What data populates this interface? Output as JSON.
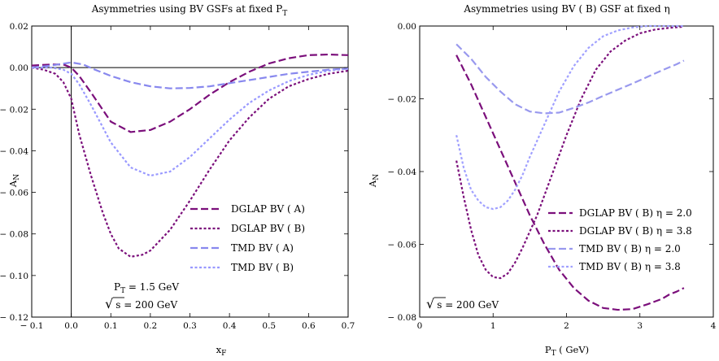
{
  "chart_data": [
    {
      "type": "line",
      "title": "Asymmetries using BV GSFs at fixed P",
      "title_subscript": "T",
      "xlabel": "x",
      "xlabel_subscript": "F",
      "ylabel": "A",
      "ylabel_subscript": "N",
      "xlim": [
        -0.1,
        0.7
      ],
      "ylim": [
        -0.12,
        0.02
      ],
      "xticks": [
        -0.1,
        0.0,
        0.1,
        0.2,
        0.3,
        0.4,
        0.5,
        0.6,
        0.7
      ],
      "xtick_labels": [
        "− 0.1",
        "0.0",
        "0.1",
        "0.2",
        "0.3",
        "0.4",
        "0.5",
        "0.6",
        "0.7"
      ],
      "yticks": [
        0.02,
        0.0,
        -0.02,
        -0.04,
        -0.06,
        -0.08,
        -0.1,
        -0.12
      ],
      "ytick_labels": [
        "0.02",
        "0.00",
        "− 0.02",
        "− 0.04",
        "− 0.06",
        "− 0.08",
        "− 0.10",
        "− 0.12"
      ],
      "grid": false,
      "axes_crossing_lines": true,
      "legend_position": "bottom-right",
      "annotations": {
        "pt_label": "P",
        "pt_sub": "T",
        "pt_value": " = 1.5 GeV",
        "sqrt_symbol": "√",
        "s_label": "s",
        "s_value": " = 200 GeV"
      },
      "series": [
        {
          "name": "DGLAP BV ( A)",
          "color": "#7b0f7b",
          "dash": "long",
          "x": [
            -0.1,
            -0.05,
            -0.02,
            0.0,
            0.02,
            0.05,
            0.1,
            0.15,
            0.2,
            0.25,
            0.3,
            0.35,
            0.4,
            0.45,
            0.5,
            0.55,
            0.6,
            0.65,
            0.7
          ],
          "y": [
            0.001,
            0.0015,
            0.0015,
            0.0,
            -0.004,
            -0.012,
            -0.026,
            -0.031,
            -0.03,
            -0.026,
            -0.02,
            -0.013,
            -0.007,
            -0.002,
            0.002,
            0.0045,
            0.006,
            0.0063,
            0.006
          ]
        },
        {
          "name": "DGLAP BV ( B)",
          "color": "#7b0f7b",
          "dash": "short",
          "x": [
            -0.1,
            -0.07,
            -0.04,
            -0.02,
            0.0,
            0.02,
            0.05,
            0.08,
            0.1,
            0.12,
            0.15,
            0.18,
            0.2,
            0.25,
            0.3,
            0.35,
            0.4,
            0.45,
            0.5,
            0.55,
            0.6,
            0.65,
            0.7
          ],
          "y": [
            0.0,
            -0.001,
            -0.003,
            -0.007,
            -0.015,
            -0.032,
            -0.052,
            -0.07,
            -0.08,
            -0.087,
            -0.091,
            -0.09,
            -0.088,
            -0.078,
            -0.064,
            -0.049,
            -0.035,
            -0.024,
            -0.015,
            -0.009,
            -0.0055,
            -0.003,
            -0.0015
          ]
        },
        {
          "name": "TMD BV ( A)",
          "color": "#8888ee",
          "dash": "long",
          "x": [
            -0.1,
            -0.05,
            0.0,
            0.03,
            0.06,
            0.1,
            0.15,
            0.2,
            0.25,
            0.3,
            0.35,
            0.4,
            0.45,
            0.5,
            0.55,
            0.6,
            0.65,
            0.7
          ],
          "y": [
            0.0,
            0.001,
            0.0025,
            0.0015,
            -0.001,
            -0.004,
            -0.007,
            -0.009,
            -0.01,
            -0.0098,
            -0.009,
            -0.0075,
            -0.006,
            -0.0045,
            -0.003,
            -0.002,
            -0.001,
            -0.0005
          ]
        },
        {
          "name": "TMD BV ( B)",
          "color": "#9999ff",
          "dash": "short",
          "x": [
            -0.1,
            -0.05,
            -0.02,
            0.0,
            0.02,
            0.05,
            0.1,
            0.15,
            0.2,
            0.25,
            0.3,
            0.35,
            0.4,
            0.45,
            0.5,
            0.55,
            0.6,
            0.65,
            0.7
          ],
          "y": [
            0.0,
            0.0,
            -0.001,
            -0.003,
            -0.008,
            -0.018,
            -0.036,
            -0.048,
            -0.052,
            -0.05,
            -0.043,
            -0.034,
            -0.025,
            -0.017,
            -0.011,
            -0.0065,
            -0.0035,
            -0.0015,
            -0.0005
          ]
        }
      ]
    },
    {
      "type": "line",
      "title": "Asymmetries using BV ( B) GSF at fixed η",
      "xlabel": "P",
      "xlabel_subscript": "T",
      "xlabel_unit": "  ( GeV)",
      "ylabel": "A",
      "ylabel_subscript": "N",
      "xlim": [
        0,
        4
      ],
      "ylim": [
        -0.08,
        0.0
      ],
      "xticks": [
        0,
        1,
        2,
        3,
        4
      ],
      "xtick_labels": [
        "0",
        "1",
        "2",
        "3",
        "4"
      ],
      "yticks": [
        0.0,
        -0.02,
        -0.04,
        -0.06,
        -0.08
      ],
      "ytick_labels": [
        "0.00",
        "− 0.02",
        "− 0.04",
        "− 0.06",
        "− 0.08"
      ],
      "grid": false,
      "legend_position": "right",
      "annotations": {
        "sqrt_symbol": "√",
        "s_label": "s",
        "s_value": " = 200 GeV"
      },
      "series": [
        {
          "name": "DGLAP BV ( B) η = 2.0",
          "color": "#7b0f7b",
          "dash": "long",
          "x": [
            0.5,
            0.7,
            0.9,
            1.1,
            1.3,
            1.5,
            1.7,
            1.9,
            2.1,
            2.3,
            2.5,
            2.7,
            2.9,
            3.1,
            3.3,
            3.4,
            3.5,
            3.6
          ],
          "y": [
            -0.008,
            -0.016,
            -0.025,
            -0.034,
            -0.043,
            -0.052,
            -0.06,
            -0.067,
            -0.072,
            -0.0755,
            -0.0775,
            -0.078,
            -0.0778,
            -0.0765,
            -0.075,
            -0.0738,
            -0.073,
            -0.072
          ]
        },
        {
          "name": "DGLAP BV ( B) η = 3.8",
          "color": "#7b0f7b",
          "dash": "short",
          "x": [
            0.5,
            0.6,
            0.7,
            0.8,
            0.9,
            1.0,
            1.1,
            1.2,
            1.3,
            1.4,
            1.6,
            1.8,
            2.0,
            2.2,
            2.4,
            2.6,
            2.8,
            3.0,
            3.2,
            3.4,
            3.6
          ],
          "y": [
            -0.037,
            -0.047,
            -0.056,
            -0.063,
            -0.067,
            -0.069,
            -0.0693,
            -0.068,
            -0.065,
            -0.061,
            -0.052,
            -0.041,
            -0.03,
            -0.02,
            -0.012,
            -0.007,
            -0.004,
            -0.002,
            -0.001,
            -0.0005,
            -0.0002
          ]
        },
        {
          "name": "TMD BV ( B) η = 2.0",
          "color": "#9999ee",
          "dash": "long",
          "x": [
            0.5,
            0.7,
            0.9,
            1.1,
            1.3,
            1.5,
            1.7,
            1.9,
            2.1,
            2.3,
            2.5,
            2.7,
            2.9,
            3.1,
            3.3,
            3.5,
            3.6
          ],
          "y": [
            -0.005,
            -0.009,
            -0.014,
            -0.018,
            -0.0215,
            -0.0235,
            -0.024,
            -0.0238,
            -0.0225,
            -0.021,
            -0.0192,
            -0.0175,
            -0.0158,
            -0.014,
            -0.0122,
            -0.0105,
            -0.0095
          ]
        },
        {
          "name": "TMD BV ( B) η = 3.8",
          "color": "#a0a0ff",
          "dash": "short",
          "x": [
            0.5,
            0.6,
            0.7,
            0.8,
            0.9,
            1.0,
            1.1,
            1.2,
            1.3,
            1.4,
            1.5,
            1.7,
            1.9,
            2.1,
            2.3,
            2.5,
            2.7,
            2.9,
            3.1,
            3.3,
            3.5,
            3.6
          ],
          "y": [
            -0.03,
            -0.039,
            -0.045,
            -0.048,
            -0.0498,
            -0.0503,
            -0.0498,
            -0.048,
            -0.045,
            -0.041,
            -0.036,
            -0.027,
            -0.018,
            -0.011,
            -0.006,
            -0.0028,
            -0.0012,
            -0.0004,
            0.0,
            0.0,
            0.0,
            0.0
          ]
        }
      ]
    }
  ]
}
